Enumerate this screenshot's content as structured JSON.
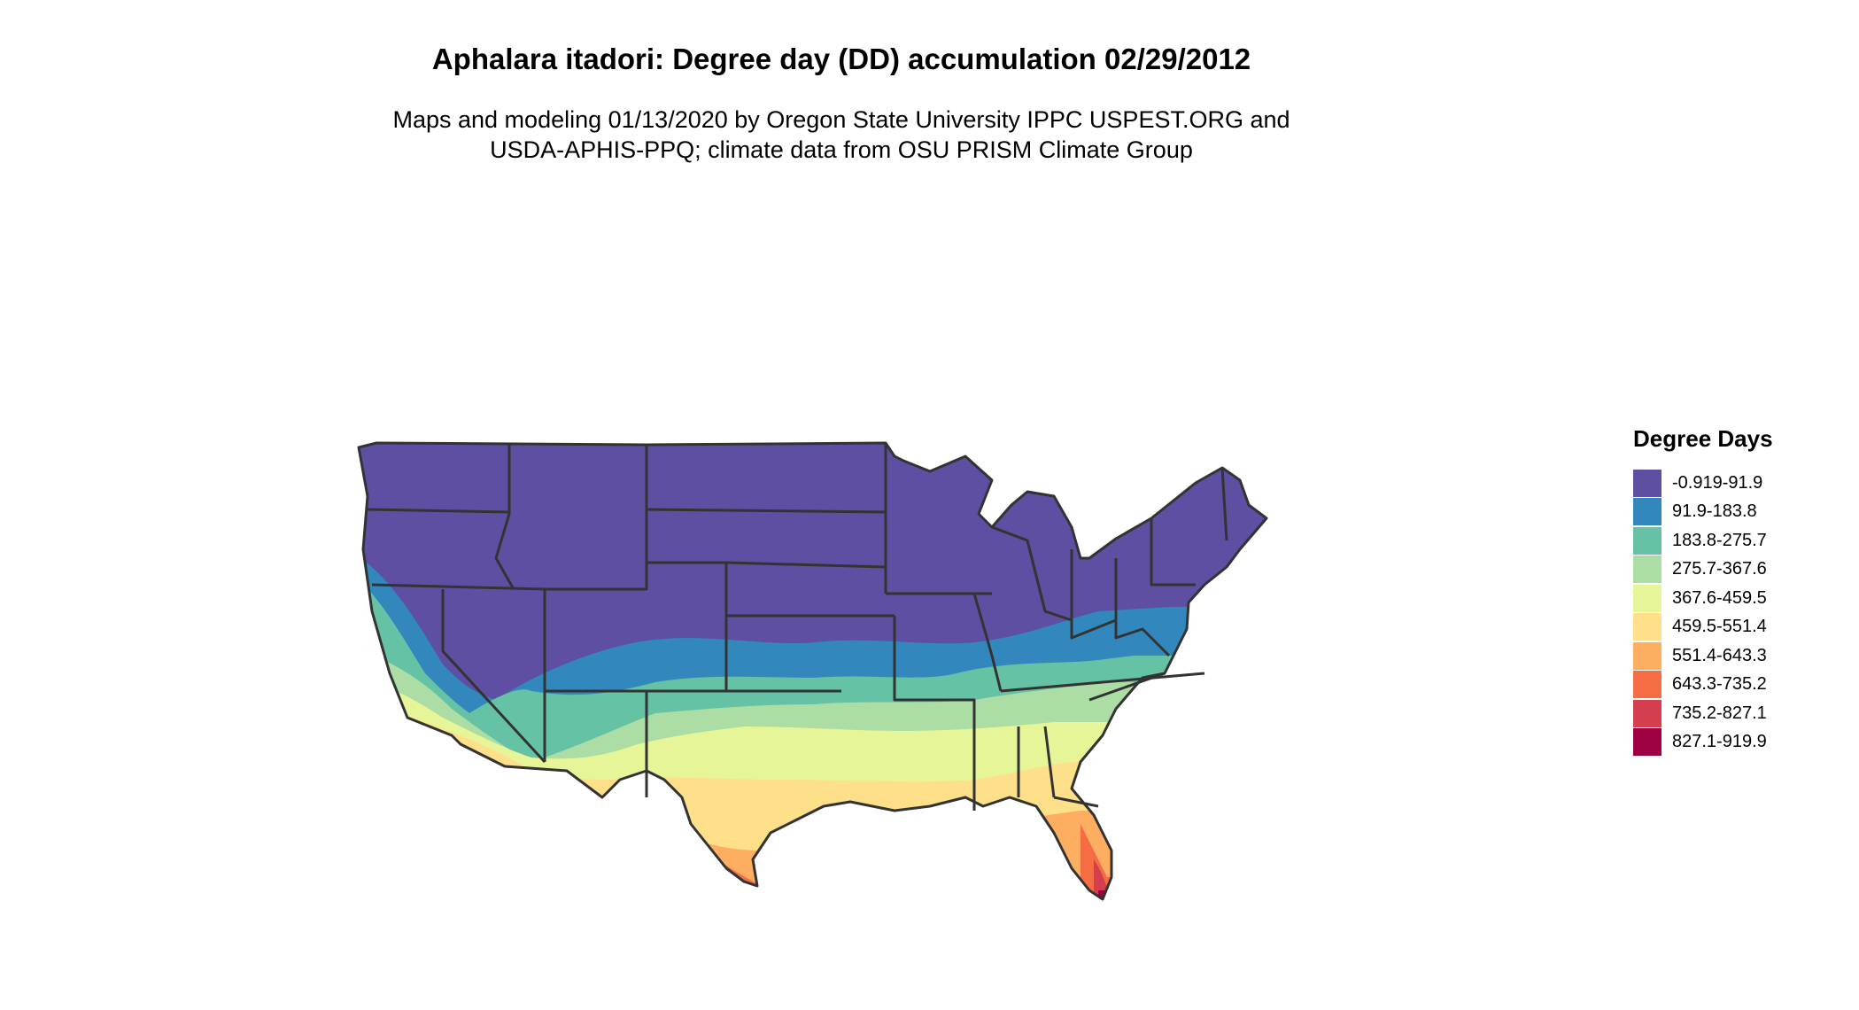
{
  "title": "Aphalara itadori: Degree day (DD) accumulation 02/29/2012",
  "subtitle": {
    "line1": "Maps and modeling 01/13/2020 by Oregon State University IPPC USPEST.ORG and",
    "line2": "USDA-APHIS-PPQ; climate data from OSU PRISM Climate Group"
  },
  "legend": {
    "title": "Degree Days",
    "items": [
      {
        "label": "-0.919-91.9",
        "color": "#5e4fa2"
      },
      {
        "label": "91.9-183.8",
        "color": "#3288bd"
      },
      {
        "label": "183.8-275.7",
        "color": "#66c2a5"
      },
      {
        "label": "275.7-367.6",
        "color": "#abdda4"
      },
      {
        "label": "367.6-459.5",
        "color": "#e6f598"
      },
      {
        "label": "459.5-551.4",
        "color": "#fee08b"
      },
      {
        "label": "551.4-643.3",
        "color": "#fdae61"
      },
      {
        "label": "643.3-735.2",
        "color": "#f46d43"
      },
      {
        "label": "735.2-827.1",
        "color": "#d53e4f"
      },
      {
        "label": "827.1-919.9",
        "color": "#9e0142"
      }
    ]
  }
}
